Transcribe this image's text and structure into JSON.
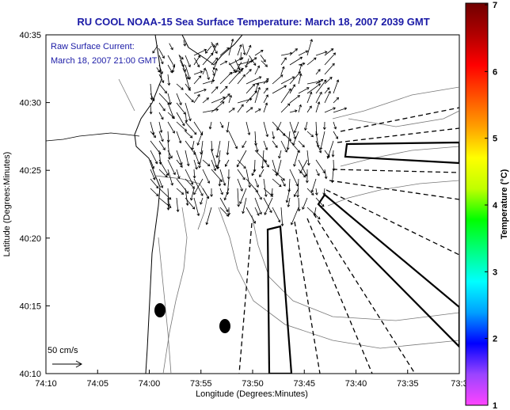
{
  "chart_data": {
    "type": "map-vector-field",
    "title": "RU COOL  NOAA-15  Sea Surface Temperature:  March 18, 2007 2039 GMT",
    "annotation_line1": "Raw Surface Current:",
    "annotation_line2": "March 18, 2007 21:00 GMT",
    "xlabel": "Longitude (Degrees:Minutes)",
    "ylabel": "Latitude (Degrees:Minutes)",
    "x_ticks": [
      "74:10",
      "74:05",
      "74:00",
      "73:55",
      "73:50",
      "73:45",
      "73:40",
      "73:35",
      "73:3"
    ],
    "y_ticks": [
      "40:35",
      "40:30",
      "40:25",
      "40:20",
      "40:15",
      "40:10"
    ],
    "xlim": [
      -74.1667,
      -73.5
    ],
    "ylim": [
      40.1667,
      40.5833
    ],
    "grid": false,
    "scale_label": "50 cm/s",
    "colorbar": {
      "label": "Temperature (°C)",
      "ticks": [
        "1",
        "2",
        "3",
        "4",
        "5",
        "6",
        "7"
      ],
      "range": [
        1,
        7
      ],
      "colors": [
        "#ff44ff",
        "#9a44ff",
        "#0000ff",
        "#00a0ff",
        "#00ffff",
        "#00ff80",
        "#00ff00",
        "#c0ff00",
        "#ffff00",
        "#ffa000",
        "#ff5000",
        "#ff0000",
        "#b00000",
        "#700000"
      ]
    },
    "vector_field_summary": "dense grid of surface current arrows between approx. 74:03W–73:42W and 40:21N–40:32N"
  }
}
